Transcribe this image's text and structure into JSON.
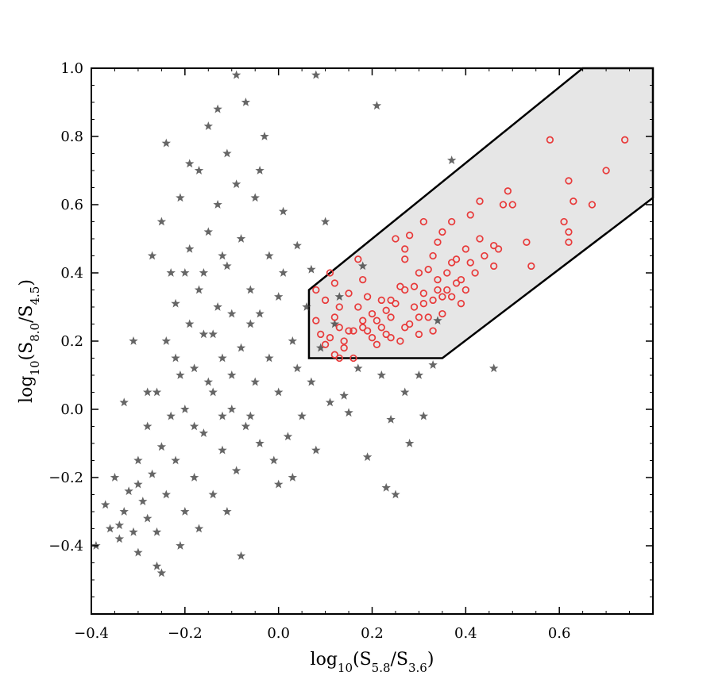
{
  "chart_data": {
    "type": "scatter",
    "title": "",
    "xlabel": "log10(S5.8/S3.6)",
    "ylabel": "log10(S8.0/S4.5)",
    "xlim": [
      -0.4,
      0.8
    ],
    "ylim": [
      -0.6,
      1.0
    ],
    "xticks": [
      "−0.4",
      "−0.2",
      "0.0",
      "0.2",
      "0.4",
      "0.6"
    ],
    "yticks": [
      "−0.4",
      "−0.2",
      "0.0",
      "0.2",
      "0.4",
      "0.6",
      "0.8",
      "1.0"
    ],
    "grid": false,
    "region": {
      "fill": "#e6e6e6",
      "stroke": "#000000",
      "vertices": [
        [
          0.065,
          0.15
        ],
        [
          0.065,
          0.35
        ],
        [
          0.65,
          1.0
        ],
        [
          0.8,
          1.0
        ],
        [
          0.8,
          0.62
        ],
        [
          0.35,
          0.15
        ]
      ]
    },
    "series": [
      {
        "marker": "star",
        "color": "#333333",
        "points": [
          [
            -0.39,
            -0.4
          ],
          [
            -0.37,
            -0.28
          ],
          [
            -0.36,
            -0.35
          ],
          [
            -0.35,
            -0.2
          ],
          [
            -0.34,
            -0.38
          ],
          [
            -0.33,
            -0.3
          ],
          [
            -0.32,
            -0.24
          ],
          [
            -0.31,
            -0.36
          ],
          [
            -0.3,
            -0.15
          ],
          [
            -0.3,
            -0.42
          ],
          [
            -0.29,
            -0.27
          ],
          [
            -0.28,
            -0.05
          ],
          [
            -0.28,
            -0.32
          ],
          [
            -0.27,
            -0.19
          ],
          [
            -0.26,
            0.05
          ],
          [
            -0.26,
            -0.36
          ],
          [
            -0.25,
            -0.11
          ],
          [
            -0.25,
            0.55
          ],
          [
            -0.24,
            -0.25
          ],
          [
            -0.24,
            0.2
          ],
          [
            -0.23,
            -0.02
          ],
          [
            -0.23,
            0.4
          ],
          [
            -0.22,
            -0.15
          ],
          [
            -0.22,
            0.31
          ],
          [
            -0.21,
            0.1
          ],
          [
            -0.21,
            0.62
          ],
          [
            -0.2,
            -0.3
          ],
          [
            -0.2,
            0.0
          ],
          [
            -0.19,
            0.25
          ],
          [
            -0.19,
            0.47
          ],
          [
            -0.18,
            -0.2
          ],
          [
            -0.18,
            0.12
          ],
          [
            -0.17,
            0.35
          ],
          [
            -0.17,
            0.7
          ],
          [
            -0.16,
            -0.07
          ],
          [
            -0.16,
            0.22
          ],
          [
            -0.15,
            0.52
          ],
          [
            -0.15,
            0.83
          ],
          [
            -0.14,
            0.05
          ],
          [
            -0.14,
            -0.25
          ],
          [
            -0.13,
            0.3
          ],
          [
            -0.13,
            0.6
          ],
          [
            -0.12,
            0.15
          ],
          [
            -0.12,
            -0.12
          ],
          [
            -0.11,
            0.42
          ],
          [
            -0.11,
            0.75
          ],
          [
            -0.1,
            0.0
          ],
          [
            -0.1,
            0.28
          ],
          [
            -0.09,
            0.66
          ],
          [
            -0.09,
            -0.18
          ],
          [
            -0.08,
            0.18
          ],
          [
            -0.08,
            0.5
          ],
          [
            -0.07,
            0.9
          ],
          [
            -0.07,
            -0.05
          ],
          [
            -0.06,
            0.35
          ],
          [
            -0.05,
            0.08
          ],
          [
            -0.05,
            0.62
          ],
          [
            -0.04,
            -0.1
          ],
          [
            -0.04,
            0.28
          ],
          [
            -0.03,
            0.8
          ],
          [
            -0.02,
            0.15
          ],
          [
            -0.02,
            0.45
          ],
          [
            -0.01,
            -0.15
          ],
          [
            0.0,
            0.05
          ],
          [
            0.0,
            0.33
          ],
          [
            0.01,
            0.58
          ],
          [
            0.02,
            -0.08
          ],
          [
            0.03,
            0.2
          ],
          [
            0.04,
            0.12
          ],
          [
            0.05,
            -0.02
          ],
          [
            0.06,
            0.3
          ],
          [
            0.07,
            0.08
          ],
          [
            0.08,
            -0.12
          ],
          [
            0.09,
            0.18
          ],
          [
            0.1,
            0.55
          ],
          [
            0.11,
            0.02
          ],
          [
            0.12,
            0.25
          ],
          [
            0.14,
            0.04
          ],
          [
            0.15,
            -0.01
          ],
          [
            0.17,
            0.12
          ],
          [
            0.18,
            0.42
          ],
          [
            0.19,
            -0.14
          ],
          [
            0.21,
            0.89
          ],
          [
            0.22,
            0.1
          ],
          [
            0.23,
            -0.23
          ],
          [
            0.24,
            -0.03
          ],
          [
            0.25,
            -0.25
          ],
          [
            0.27,
            0.05
          ],
          [
            0.28,
            -0.1
          ],
          [
            0.3,
            0.1
          ],
          [
            0.31,
            -0.02
          ],
          [
            0.33,
            0.13
          ],
          [
            0.34,
            0.26
          ],
          [
            0.37,
            0.73
          ],
          [
            0.46,
            0.12
          ],
          [
            -0.33,
            0.02
          ],
          [
            -0.31,
            0.2
          ],
          [
            -0.27,
            0.45
          ],
          [
            -0.24,
            0.78
          ],
          [
            -0.21,
            -0.4
          ],
          [
            -0.19,
            0.72
          ],
          [
            -0.17,
            -0.35
          ],
          [
            -0.15,
            0.08
          ],
          [
            -0.13,
            0.88
          ],
          [
            -0.11,
            -0.3
          ],
          [
            -0.09,
            0.98
          ],
          [
            -0.08,
            -0.43
          ],
          [
            -0.06,
            0.25
          ],
          [
            -0.04,
            0.7
          ],
          [
            0.01,
            0.4
          ],
          [
            0.04,
            0.48
          ],
          [
            0.07,
            0.41
          ],
          [
            0.08,
            0.98
          ],
          [
            0.13,
            0.33
          ],
          [
            -0.26,
            -0.46
          ],
          [
            -0.25,
            -0.48
          ],
          [
            -0.2,
            0.4
          ],
          [
            -0.16,
            0.4
          ],
          [
            -0.12,
            0.45
          ],
          [
            -0.1,
            0.1
          ],
          [
            -0.14,
            0.22
          ],
          [
            -0.18,
            -0.05
          ],
          [
            -0.22,
            0.15
          ],
          [
            -0.28,
            0.05
          ],
          [
            -0.3,
            -0.22
          ],
          [
            -0.34,
            -0.34
          ],
          [
            -0.12,
            -0.02
          ],
          [
            -0.06,
            -0.02
          ],
          [
            0.0,
            -0.22
          ],
          [
            0.03,
            -0.2
          ]
        ]
      },
      {
        "marker": "circle",
        "color": "#e83a3a",
        "points": [
          [
            0.08,
            0.35
          ],
          [
            0.08,
            0.26
          ],
          [
            0.1,
            0.32
          ],
          [
            0.11,
            0.4
          ],
          [
            0.11,
            0.21
          ],
          [
            0.12,
            0.37
          ],
          [
            0.12,
            0.16
          ],
          [
            0.13,
            0.3
          ],
          [
            0.13,
            0.24
          ],
          [
            0.14,
            0.18
          ],
          [
            0.15,
            0.23
          ],
          [
            0.16,
            0.15
          ],
          [
            0.17,
            0.3
          ],
          [
            0.17,
            0.44
          ],
          [
            0.18,
            0.38
          ],
          [
            0.18,
            0.24
          ],
          [
            0.19,
            0.33
          ],
          [
            0.2,
            0.28
          ],
          [
            0.21,
            0.19
          ],
          [
            0.21,
            0.26
          ],
          [
            0.22,
            0.32
          ],
          [
            0.23,
            0.22
          ],
          [
            0.24,
            0.27
          ],
          [
            0.25,
            0.31
          ],
          [
            0.25,
            0.5
          ],
          [
            0.26,
            0.2
          ],
          [
            0.27,
            0.35
          ],
          [
            0.27,
            0.44
          ],
          [
            0.28,
            0.25
          ],
          [
            0.28,
            0.51
          ],
          [
            0.29,
            0.3
          ],
          [
            0.3,
            0.4
          ],
          [
            0.3,
            0.22
          ],
          [
            0.31,
            0.34
          ],
          [
            0.31,
            0.55
          ],
          [
            0.32,
            0.27
          ],
          [
            0.33,
            0.45
          ],
          [
            0.33,
            0.32
          ],
          [
            0.34,
            0.38
          ],
          [
            0.34,
            0.49
          ],
          [
            0.35,
            0.28
          ],
          [
            0.35,
            0.52
          ],
          [
            0.36,
            0.4
          ],
          [
            0.37,
            0.33
          ],
          [
            0.37,
            0.55
          ],
          [
            0.38,
            0.44
          ],
          [
            0.39,
            0.38
          ],
          [
            0.4,
            0.47
          ],
          [
            0.41,
            0.57
          ],
          [
            0.42,
            0.4
          ],
          [
            0.43,
            0.5
          ],
          [
            0.43,
            0.61
          ],
          [
            0.46,
            0.42
          ],
          [
            0.47,
            0.47
          ],
          [
            0.48,
            0.6
          ],
          [
            0.49,
            0.64
          ],
          [
            0.5,
            0.6
          ],
          [
            0.53,
            0.49
          ],
          [
            0.54,
            0.42
          ],
          [
            0.58,
            0.79
          ],
          [
            0.61,
            0.55
          ],
          [
            0.62,
            0.52
          ],
          [
            0.62,
            0.67
          ],
          [
            0.63,
            0.61
          ],
          [
            0.62,
            0.49
          ],
          [
            0.67,
            0.6
          ],
          [
            0.7,
            0.7
          ],
          [
            0.74,
            0.79
          ],
          [
            0.14,
            0.2
          ],
          [
            0.16,
            0.23
          ],
          [
            0.19,
            0.23
          ],
          [
            0.22,
            0.24
          ],
          [
            0.23,
            0.29
          ],
          [
            0.24,
            0.21
          ],
          [
            0.26,
            0.36
          ],
          [
            0.29,
            0.36
          ],
          [
            0.31,
            0.31
          ],
          [
            0.33,
            0.23
          ],
          [
            0.34,
            0.35
          ],
          [
            0.36,
            0.35
          ],
          [
            0.38,
            0.37
          ],
          [
            0.39,
            0.31
          ],
          [
            0.4,
            0.35
          ],
          [
            0.41,
            0.43
          ],
          [
            0.44,
            0.45
          ],
          [
            0.46,
            0.48
          ],
          [
            0.15,
            0.34
          ],
          [
            0.18,
            0.26
          ],
          [
            0.2,
            0.21
          ],
          [
            0.24,
            0.32
          ],
          [
            0.27,
            0.24
          ],
          [
            0.3,
            0.27
          ],
          [
            0.32,
            0.41
          ],
          [
            0.35,
            0.33
          ],
          [
            0.37,
            0.43
          ],
          [
            0.12,
            0.27
          ],
          [
            0.09,
            0.22
          ],
          [
            0.1,
            0.19
          ],
          [
            0.13,
            0.15
          ],
          [
            0.27,
            0.47
          ]
        ]
      }
    ]
  }
}
